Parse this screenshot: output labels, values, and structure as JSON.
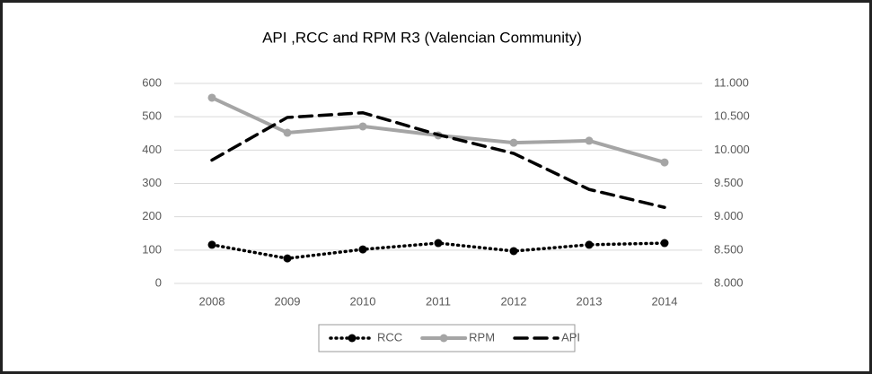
{
  "chart_data": {
    "type": "line",
    "title": "API ,RCC  and RPM R3 (Valencian Community)",
    "categories": [
      "2008",
      "2009",
      "2010",
      "2011",
      "2012",
      "2013",
      "2014"
    ],
    "series": [
      {
        "name": "RCC",
        "color": "#000000",
        "line_style": "dotted",
        "marker": "circle",
        "axis": "y",
        "values": [
          116,
          75,
          102,
          121,
          97,
          116,
          121
        ]
      },
      {
        "name": "RPM",
        "color": "#a5a5a5",
        "line_style": "solid",
        "marker": "circle",
        "axis": "y",
        "values": [
          557,
          452,
          471,
          444,
          422,
          428,
          363
        ]
      },
      {
        "name": "API",
        "color": "#000000",
        "line_style": "dashed",
        "marker": "none",
        "axis": "y2",
        "values": [
          9850,
          10490,
          10560,
          10230,
          9950,
          9410,
          9140
        ]
      }
    ],
    "ylim": [
      0,
      600
    ],
    "yticks": [
      0,
      100,
      200,
      300,
      400,
      500,
      600
    ],
    "y2lim": [
      8000,
      11000
    ],
    "y2ticks": [
      {
        "value": 8000,
        "label": "8.000"
      },
      {
        "value": 8500,
        "label": "8.500"
      },
      {
        "value": 9000,
        "label": "9.000"
      },
      {
        "value": 9500,
        "label": "9.500"
      },
      {
        "value": 10000,
        "label": "10.000"
      },
      {
        "value": 10500,
        "label": "10.500"
      },
      {
        "value": 11000,
        "label": "11.000"
      }
    ],
    "grid": true,
    "legend": "bottom"
  }
}
